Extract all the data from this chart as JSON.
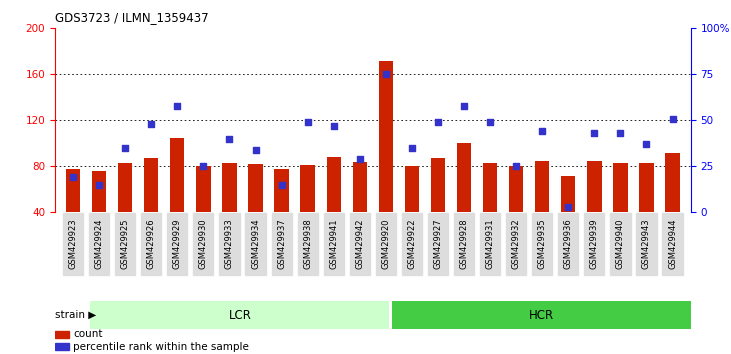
{
  "title": "GDS3723 / ILMN_1359437",
  "samples": [
    "GSM429923",
    "GSM429924",
    "GSM429925",
    "GSM429926",
    "GSM429929",
    "GSM429930",
    "GSM429933",
    "GSM429934",
    "GSM429937",
    "GSM429938",
    "GSM429941",
    "GSM429942",
    "GSM429920",
    "GSM429922",
    "GSM429927",
    "GSM429928",
    "GSM429931",
    "GSM429932",
    "GSM429935",
    "GSM429936",
    "GSM429939",
    "GSM429940",
    "GSM429943",
    "GSM429944"
  ],
  "red_bars": [
    78,
    76,
    83,
    87,
    105,
    80,
    83,
    82,
    78,
    81,
    88,
    84,
    172,
    80,
    87,
    100,
    83,
    80,
    85,
    72,
    85,
    83,
    83,
    92
  ],
  "blue_dots_pct": [
    19,
    15,
    35,
    48,
    58,
    25,
    40,
    34,
    15,
    49,
    47,
    29,
    75,
    35,
    49,
    58,
    49,
    25,
    44,
    3,
    43,
    43,
    37,
    51
  ],
  "lcr_count": 12,
  "hcr_count": 12,
  "lcr_label": "LCR",
  "hcr_label": "HCR",
  "strain_label": "strain",
  "count_label": "count",
  "pct_label": "percentile rank within the sample",
  "ylim_left": [
    40,
    200
  ],
  "yticks_left": [
    40,
    80,
    120,
    160,
    200
  ],
  "ylim_right": [
    0,
    100
  ],
  "yticks_right": [
    0,
    25,
    50,
    75,
    100
  ],
  "bar_color": "#cc2200",
  "dot_color": "#3333cc",
  "lcr_color": "#ccffcc",
  "hcr_color": "#44cc44",
  "bg_color": "#ffffff",
  "tick_bg": "#dddddd"
}
